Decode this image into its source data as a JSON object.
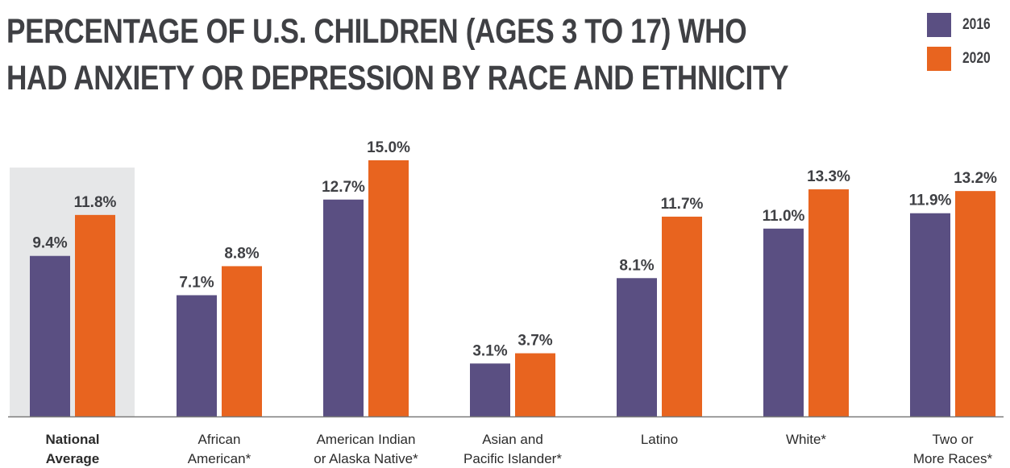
{
  "title_lines": [
    "Percentage of U.S. Children (Ages 3 to 17) who",
    "had Anxiety or Depression by Race and Ethnicity"
  ],
  "colors": {
    "series_2016": "#5a4f82",
    "series_2020": "#e8641f",
    "highlight_bg": "#e6e7e8",
    "axis": "#7a7a7a"
  },
  "chart_data": {
    "type": "bar",
    "title": "Percentage of U.S. Children (Ages 3 to 17) who had Anxiety or Depression by Race and Ethnicity",
    "categories": [
      [
        "National",
        "Average"
      ],
      [
        "African",
        "American*"
      ],
      [
        "American Indian",
        "or Alaska Native*"
      ],
      [
        "Asian and",
        "Pacific Islander*"
      ],
      [
        "Latino"
      ],
      [
        "White*"
      ],
      [
        "Two or",
        "More Races*"
      ]
    ],
    "highlighted_category": 0,
    "series": [
      {
        "name": "2016",
        "values": [
          9.4,
          7.1,
          12.7,
          3.1,
          8.1,
          11.0,
          11.9
        ],
        "labels": [
          "9.4%",
          "7.1%",
          "12.7%",
          "3.1%",
          "8.1%",
          "11.0%",
          "11.9%"
        ]
      },
      {
        "name": "2020",
        "values": [
          11.8,
          8.8,
          15.0,
          3.7,
          11.7,
          13.3,
          13.2
        ],
        "labels": [
          "11.8%",
          "8.8%",
          "15.0%",
          "3.7%",
          "11.7%",
          "13.3%",
          "13.2%"
        ]
      }
    ],
    "ylim": [
      0,
      16
    ],
    "legend_position": "top-right",
    "grid": false
  }
}
